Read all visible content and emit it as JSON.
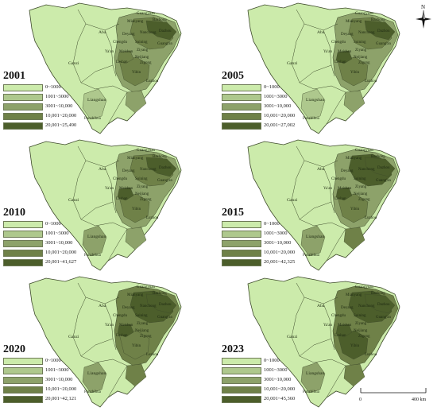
{
  "palette": {
    "class1": "#ccebab",
    "class2": "#aec88d",
    "class3": "#8da26a",
    "class4": "#6f8148",
    "class5": "#4c5e2b",
    "outline": "#3d4a2a"
  },
  "place_labels": [
    "Aba",
    "Ganzi",
    "Liangshan",
    "Panzhihua",
    "Guangyuan",
    "Mianyang",
    "Bazhong",
    "Dazhou",
    "Deyang",
    "Nanchong",
    "Chengdu",
    "Suining",
    "Guang'an",
    "Ya'an",
    "Meishan",
    "Ziyang",
    "Neijiang",
    "Leshan",
    "Zigong",
    "Yibin",
    "Luzhou"
  ],
  "compass": {
    "north": "N"
  },
  "scale": {
    "zero": "0",
    "end": "400 km"
  },
  "panels": [
    {
      "year": "2001",
      "legend": [
        "0~1000",
        "1001~3000",
        "3001~10,000",
        "10,001~20,000",
        "20,001~25,490"
      ]
    },
    {
      "year": "2005",
      "legend": [
        "0~1000",
        "1001~3000",
        "3001~10,000",
        "10,001~20,000",
        "20,001~27,002"
      ]
    },
    {
      "year": "2010",
      "legend": [
        "0~1000",
        "1001~3000",
        "3001~10,000",
        "10,001~20,000",
        "20,001~41,627"
      ]
    },
    {
      "year": "2015",
      "legend": [
        "0~1000",
        "1001~3000",
        "3001~10,000",
        "10,001~20,000",
        "20,001~42,325"
      ]
    },
    {
      "year": "2020",
      "legend": [
        "0~1000",
        "1001~3000",
        "3001~10,000",
        "10,001~20,000",
        "20,001~42,121"
      ]
    },
    {
      "year": "2023",
      "legend": [
        "0~1000",
        "1001~3000",
        "3001~10,000",
        "10,001~20,000",
        "20,001~45,360"
      ]
    }
  ]
}
